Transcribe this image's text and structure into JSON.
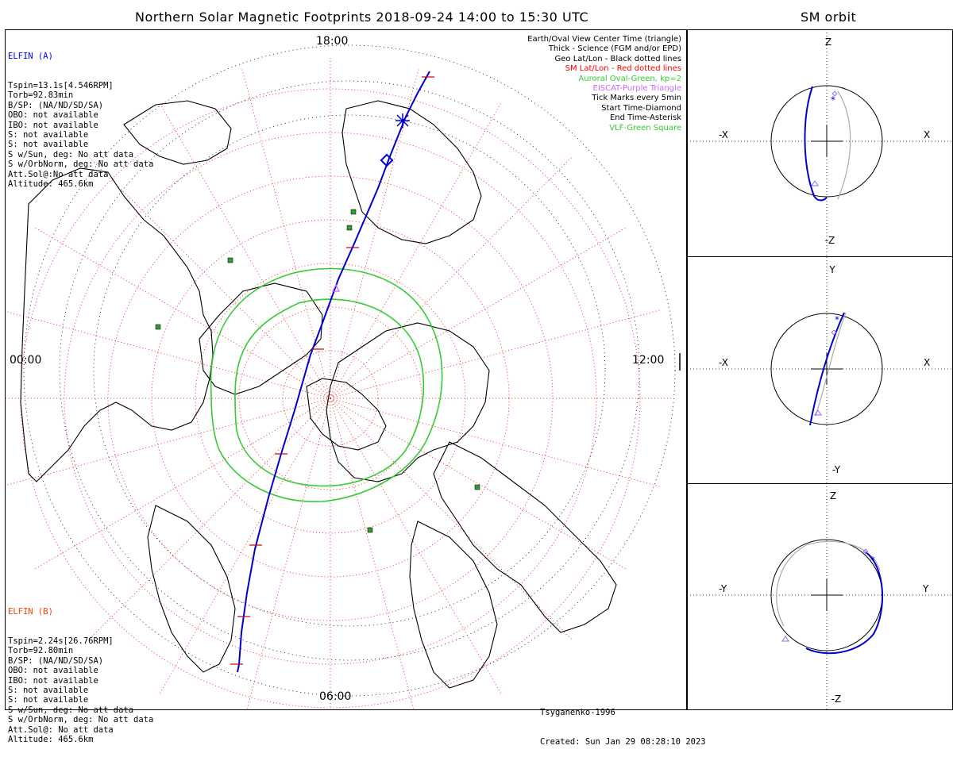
{
  "main_title": "Northern Solar Magnetic Footprints 2018-09-24 14:00 to 15:30 UTC",
  "orbit_title": "SM orbit",
  "elfin_a": {
    "name": "ELFIN (A)",
    "color": "#0000ff",
    "lines": [
      "Tspin=13.1s[4.546RPM]",
      "Torb=92.83min",
      "B/SP: (NA/ND/SD/SA)",
      "OBO: not available",
      "IBO: not available",
      "S: not available",
      "S: not available",
      "S w/Sun, deg: No att data",
      "S w/OrbNorm, deg: No att data",
      "Att.Sol@:No att data",
      "Altitude: 465.6km"
    ]
  },
  "elfin_b": {
    "name": "ELFIN (B)",
    "color": "#ff4000",
    "lines": [
      "Tspin=2.24s[26.76RPM]",
      "Torb=92.80min",
      "B/SP: (NA/ND/SD/SA)",
      "OBO: not available",
      "IBO: not available",
      "S: not available",
      "S: not available",
      "S w/Sun, deg: No att data",
      "S w/OrbNorm, deg: No att data",
      "Att.Sol@: No att data",
      "Altitude: 465.6km"
    ]
  },
  "legend": [
    {
      "text": "Earth/Oval View Center Time (triangle)",
      "color": "#000000"
    },
    {
      "text": "Thick - Science (FGM and/or EPD)",
      "color": "#000000"
    },
    {
      "text": "Geo Lat/Lon - Black dotted lines",
      "color": "#000000"
    },
    {
      "text": "SM Lat/Lon - Red dotted lines",
      "color": "#ff0000"
    },
    {
      "text": "Auroral Oval-Green, kp=2",
      "color": "#33cc33"
    },
    {
      "text": "EISCAT-Purple Triangle",
      "color": "#cc66ff"
    },
    {
      "text": "Tick Marks every 5min",
      "color": "#000000"
    },
    {
      "text": "Start Time-Diamond",
      "color": "#000000"
    },
    {
      "text": "End Time-Asterisk",
      "color": "#000000"
    },
    {
      "text": "VLF-Green Square",
      "color": "#33cc33"
    }
  ],
  "time_labels": {
    "top": "18:00",
    "left": "00:00",
    "right": "12:00",
    "bottom": "06:00"
  },
  "credits": [
    "Tsyganenko-1996",
    "Created: Sun Jan 29 08:28:10 2023"
  ],
  "orbit_panels": [
    {
      "top": "Z",
      "bottom": "-Z",
      "left": "-X",
      "right": "X"
    },
    {
      "top": "Y",
      "bottom": "-Y",
      "left": "-X",
      "right": "X"
    },
    {
      "top": "Z",
      "bottom": "-Z",
      "left": "-Y",
      "right": "Y"
    }
  ],
  "colors": {
    "track": "#0000cc",
    "sm_grid": "#ff0000",
    "geo_grid": "#000000",
    "oval": "#33cc33",
    "vlf": "#339933",
    "eiscat": "#cc66ff",
    "orbit_gray": "#aaaaaa"
  }
}
